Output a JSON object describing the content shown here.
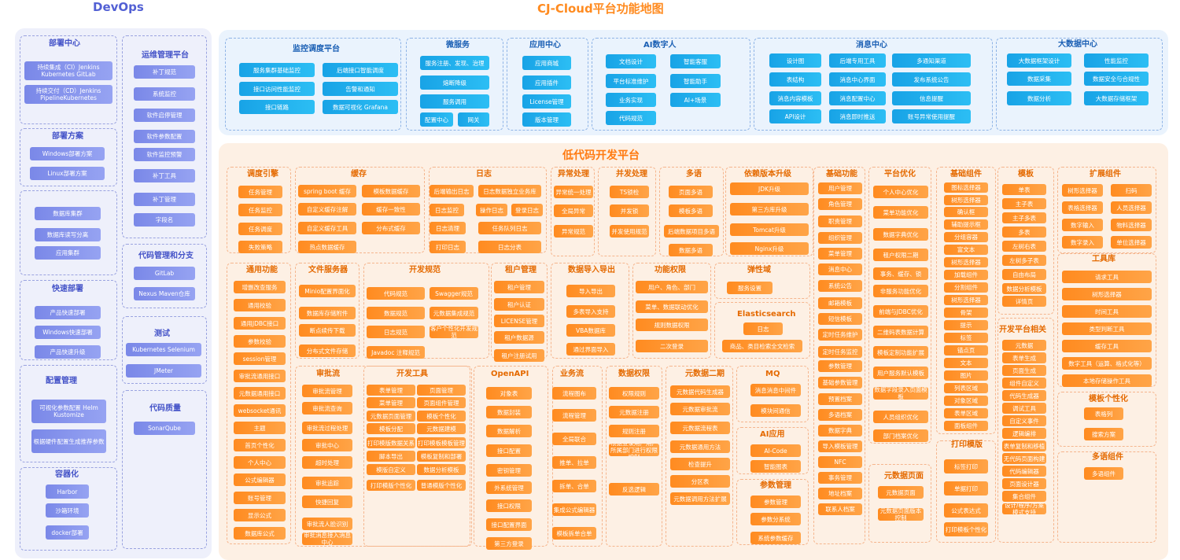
{
  "titles": {
    "devops": "DevOps",
    "main": "CJ-Cloud平台功能地图",
    "lowcode": "低代码开发平台"
  },
  "colors": {
    "orange": "#ff8b20",
    "blue": "#18a3e6",
    "purple": "#7a88e8",
    "orange_bg": "#fdf0e4",
    "blue_bg": "#eaf3fd",
    "purple_bg": "#eef0fb"
  },
  "devops": [
    {
      "title": "部署中心",
      "items": [
        "持续集成（CI）Jenkins Kubernetes GitLab",
        "持续交付（CD）Jenkins PipelineKubernetes"
      ]
    },
    {
      "title": "部署方案",
      "items": [
        "Windows部署方案",
        "Linux部署方案"
      ]
    },
    {
      "title": "",
      "items": [
        "数据库集群",
        "数据库读写分离",
        "应用集群"
      ]
    },
    {
      "title": "快速部署",
      "items": [
        "产品快速部署",
        "Windows快速部署",
        "产品快速升级"
      ]
    },
    {
      "title": "配置管理",
      "items": [
        "可视化参数配置 Helm Kustomize",
        "根据硬件配置生成推荐参数"
      ]
    },
    {
      "title": "容器化",
      "items": [
        "Harbor",
        "沙箱环境",
        "docker部署"
      ]
    },
    {
      "title": "运维管理平台",
      "items": [
        "补丁规范",
        "系统监控",
        "软件启停管理",
        "软件参数配置",
        "软件监控预警",
        "补丁工具",
        "补丁管理",
        "字段名"
      ]
    },
    {
      "title": "代码管理和分支",
      "items": [
        "GitLab",
        "Nexus Maven仓库"
      ]
    },
    {
      "title": "测试",
      "items": [
        "Kubernetes Selenium",
        "JMeter"
      ]
    },
    {
      "title": "代码质量",
      "items": [
        "SonarQube"
      ]
    }
  ],
  "top": [
    {
      "title": "监控调度平台",
      "items": [
        "服务集群基础监控",
        "后端接口智能调度",
        "接口访问性能监控",
        "告警和通知",
        "接口链路",
        "数据可视化 Grafana"
      ]
    },
    {
      "title": "微服务",
      "items": [
        "服务注册、发现、治理",
        "熔断降级",
        "服务调用",
        "配置中心",
        "网关"
      ]
    },
    {
      "title": "应用中心",
      "items": [
        "应用商城",
        "应用插件",
        "License管理",
        "版本管理"
      ]
    },
    {
      "title": "AI数字人",
      "items": [
        "文档设计",
        "智能客服",
        "平台标准维护",
        "智能助手",
        "业务实现",
        "AI+场景",
        "代码规范"
      ]
    },
    {
      "title": "消息中心",
      "items": [
        "设计图",
        "后端专用工具",
        "多通知渠道",
        "表结构",
        "消息中心界面",
        "发布系统公告",
        "消息内容模板",
        "消息配置中心",
        "信息提醒",
        "API设计",
        "消息即时推送",
        "账号异常使用提醒"
      ]
    },
    {
      "title": "大数据中心",
      "items": [
        "大数据框架设计",
        "性能监控",
        "数据采集",
        "数据安全与合规性",
        "数据分析",
        "大数据存储框架"
      ]
    }
  ],
  "lc": [
    {
      "title": "调度引擎",
      "items": [
        "任务管理",
        "任务监控",
        "任务调度",
        "失败策略"
      ]
    },
    {
      "title": "缓存",
      "items": [
        "spring boot 缓存",
        "模板数据缓存",
        "自定义缓存注解",
        "缓存一致性",
        "自定义缓存工具",
        "分布式缓存",
        "热点数据缓存"
      ]
    },
    {
      "title": "日志",
      "items": [
        "后端输出日志",
        "日志数据独立业务库",
        "日志监控",
        "操作日志",
        "登录日志",
        "日志清理",
        "任务队列日志",
        "打印日志",
        "日志分表"
      ]
    },
    {
      "title": "异常处理",
      "items": [
        "异常统一处理",
        "全局异常",
        "异常规范"
      ]
    },
    {
      "title": "并发处理",
      "items": [
        "TS锁检",
        "并发锁",
        "并发使用规范"
      ]
    },
    {
      "title": "多语",
      "items": [
        "页面多语",
        "模板多语",
        "后端数据项目多语",
        "数据多语"
      ]
    },
    {
      "title": "依赖版本升级",
      "items": [
        "JDK升级",
        "第三方库升级",
        "Tomcat升级",
        "Nginx升级"
      ]
    },
    {
      "title": "通用功能",
      "items": [
        "增删改查服务",
        "通用校验",
        "通用JDBC接口",
        "参数校验",
        "session管理",
        "审批流通用接口",
        "元数据通用接口",
        "websocket通讯",
        "主题",
        "首页个性化",
        "个人中心",
        "公式编辑器",
        "账号管理",
        "显示公式",
        "数据库公式"
      ]
    },
    {
      "title": "文件服务器",
      "items": [
        "Minio配置界面化",
        "数据库存储附件",
        "断点续传下载",
        "分布式文件存储"
      ]
    },
    {
      "title": "开发规范",
      "items": [
        "代码规范",
        "Swagger规范",
        "数据规范",
        "元数据集成规范",
        "日志规范",
        "客户个性化开发规范",
        "Javadoc 注释规范"
      ]
    },
    {
      "title": "租户管理",
      "items": [
        "租户管理",
        "租户认证",
        "LICENSE管理",
        "租户数据源",
        "租户注册试用"
      ]
    },
    {
      "title": "数据导入导出",
      "items": [
        "导入导出",
        "多表导入支持",
        "VBA数据库",
        "通过界面导入"
      ]
    },
    {
      "title": "功能权限",
      "items": [
        "用户、角色、部门",
        "菜单、数据联动优化",
        "规则数据权限",
        "二次登录"
      ]
    },
    {
      "title": "弹性域",
      "items": [
        "服务设置"
      ]
    },
    {
      "title": "Elasticsearch",
      "items": [
        "日志",
        "商品、类目检索全文检索"
      ]
    },
    {
      "title": "审批流",
      "items": [
        "审批流管理",
        "审批流查询",
        "审批流过程处理",
        "审批中心",
        "超时处理",
        "审批追踪",
        "快捷回复",
        "审批流人脸识别",
        "审批消息接入消息中心"
      ]
    },
    {
      "title": "开发工具",
      "items": [
        "表单管理",
        "页面管理",
        "菜单管理",
        "页面组件管理",
        "元数据页面管理",
        "模板个性化",
        "模板分配",
        "元数据建模",
        "打印模版数据关系",
        "打印模板模板管理",
        "脚本导出",
        "模板复制和部署",
        "模版自定义",
        "数据分析模板",
        "打印模版个性化",
        "普通模版个性化"
      ]
    },
    {
      "title": "OpenAPI",
      "items": [
        "对象表",
        "数据封装",
        "数据解析",
        "接口配置",
        "密钥管理",
        "外系统管理",
        "接口权限",
        "接口配置界面",
        "第三方登录"
      ]
    },
    {
      "title": "业务流",
      "items": [
        "流程图布",
        "流程管理",
        "全局联合",
        "推单、拉单",
        "拆单、合单",
        "集成公式编辑器",
        "模板拆单合单"
      ]
    },
    {
      "title": "数据权限",
      "items": [
        "权限规则",
        "元数据注册",
        "规则注册",
        "根据登录用户用户所属部门进行权限控制",
        "反选逻辑"
      ]
    },
    {
      "title": "元数据二期",
      "items": [
        "元数据代码生成器",
        "元数据审批流",
        "元数据流程表",
        "元数据通用方法",
        "检查提升",
        "分区表",
        "元数据调用方法扩展"
      ]
    },
    {
      "title": "MQ",
      "items": [
        "消息消息中间件",
        "模块间通信"
      ]
    },
    {
      "title": "AI应用",
      "items": [
        "AI-Code",
        "智能图表"
      ]
    },
    {
      "title": "参数管理",
      "items": [
        "参数管理",
        "参数分系统",
        "系统参数缓存"
      ]
    },
    {
      "title": "基础功能",
      "items": [
        "用户管理",
        "角色管理",
        "职责管理",
        "组织管理",
        "菜单管理",
        "消息中心",
        "系统公告",
        "邮箱模板",
        "短信模板",
        "定时任务维护",
        "定时任务监控",
        "参数管理",
        "基础参数管理",
        "预置档案",
        "多语档案",
        "数据字典",
        "导入模板管理",
        "NFC",
        "事务管理",
        "地址档案",
        "联系人档案"
      ]
    },
    {
      "title": "平台优化",
      "items": [
        "个人中心优化",
        "菜单功能优化",
        "数据字典优化",
        "租户权限二期",
        "事务、缓存、锁",
        "非服务功能优化",
        "前端与JDBC优化",
        "二维码表数据计算",
        "模板定制功能扩展",
        "用户服务默认模板",
        "数据字段录入页面模板",
        "人员组织优化",
        "部门档案优化"
      ]
    },
    {
      "title": "元数据页面",
      "items": [
        "元数据页面",
        "元数据页面版本控制"
      ]
    },
    {
      "title": "基础组件",
      "items": [
        "图标选择器",
        "树形选择器",
        "确认框",
        "辅助提示框",
        "分组容器",
        "富文本",
        "树形选择器",
        "加载组件",
        "分割组件",
        "树形选择器",
        "骨架",
        "提示",
        "标签",
        "锚点页",
        "文本",
        "图片",
        "列表区域",
        "对象区域",
        "表单区域",
        "面板组件"
      ]
    },
    {
      "title": "打印模版",
      "items": [
        "标签打印",
        "单据打印",
        "公式表达式",
        "打印模板个性化"
      ]
    },
    {
      "title": "模板",
      "items": [
        "单表",
        "主子表",
        "主子多表",
        "多表",
        "左树右表",
        "左树多子表",
        "自由布局",
        "数据分析模板",
        "详情页"
      ]
    },
    {
      "title": "开发平台相关",
      "items": [
        "元数据",
        "表单生成",
        "页面生成",
        "组件自定义",
        "代码生成器",
        "调试工具",
        "自定义事件",
        "逻辑编排",
        "表单复制和移植",
        "无代码页面构建",
        "代码编辑器",
        "页面设计器",
        "集合组件",
        "设计/程序/方案模式支持"
      ]
    },
    {
      "title": "扩展组件",
      "items": [
        "树形选择器",
        "扫码",
        "表格选择器",
        "人员选择器",
        "数字输入",
        "物料选择器",
        "数字录入",
        "单位选择器"
      ]
    },
    {
      "title": "工具库",
      "items": [
        "请求工具",
        "树形选择器",
        "时间工具",
        "类型判断工具",
        "缓存工具",
        "数字工具（运算、格式化等）",
        "本地存储操作工具"
      ]
    },
    {
      "title": "模板个性化",
      "items": [
        "表格列",
        "搜索方案"
      ]
    },
    {
      "title": "多语组件",
      "items": [
        "多语组件"
      ]
    }
  ]
}
